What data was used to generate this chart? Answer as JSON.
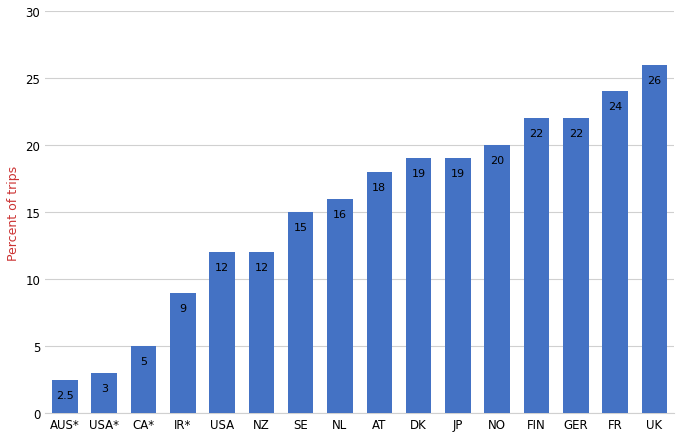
{
  "categories": [
    "AUS*",
    "USA*",
    "CA*",
    "IR*",
    "USA",
    "NZ",
    "SE",
    "NL",
    "AT",
    "DK",
    "JP",
    "NO",
    "FIN",
    "GER",
    "FR",
    "UK"
  ],
  "values": [
    2.5,
    3,
    5,
    9,
    12,
    12,
    15,
    16,
    18,
    19,
    19,
    20,
    22,
    22,
    24,
    26
  ],
  "bar_color": "#4472C4",
  "ylabel": "Percent of trips",
  "ylim": [
    0,
    30
  ],
  "yticks": [
    0,
    5,
    10,
    15,
    20,
    25,
    30
  ],
  "label_values": [
    "2.5",
    "3",
    "5",
    "9",
    "12",
    "12",
    "15",
    "16",
    "18",
    "19",
    "19",
    "20",
    "22",
    "22",
    "24",
    "26"
  ],
  "background_color": "#ffffff",
  "grid_color": "#d0d0d0",
  "bar_width": 0.65,
  "label_fontsize": 8,
  "ylabel_fontsize": 9,
  "tick_fontsize": 8.5,
  "ylabel_color": "#cc3333"
}
